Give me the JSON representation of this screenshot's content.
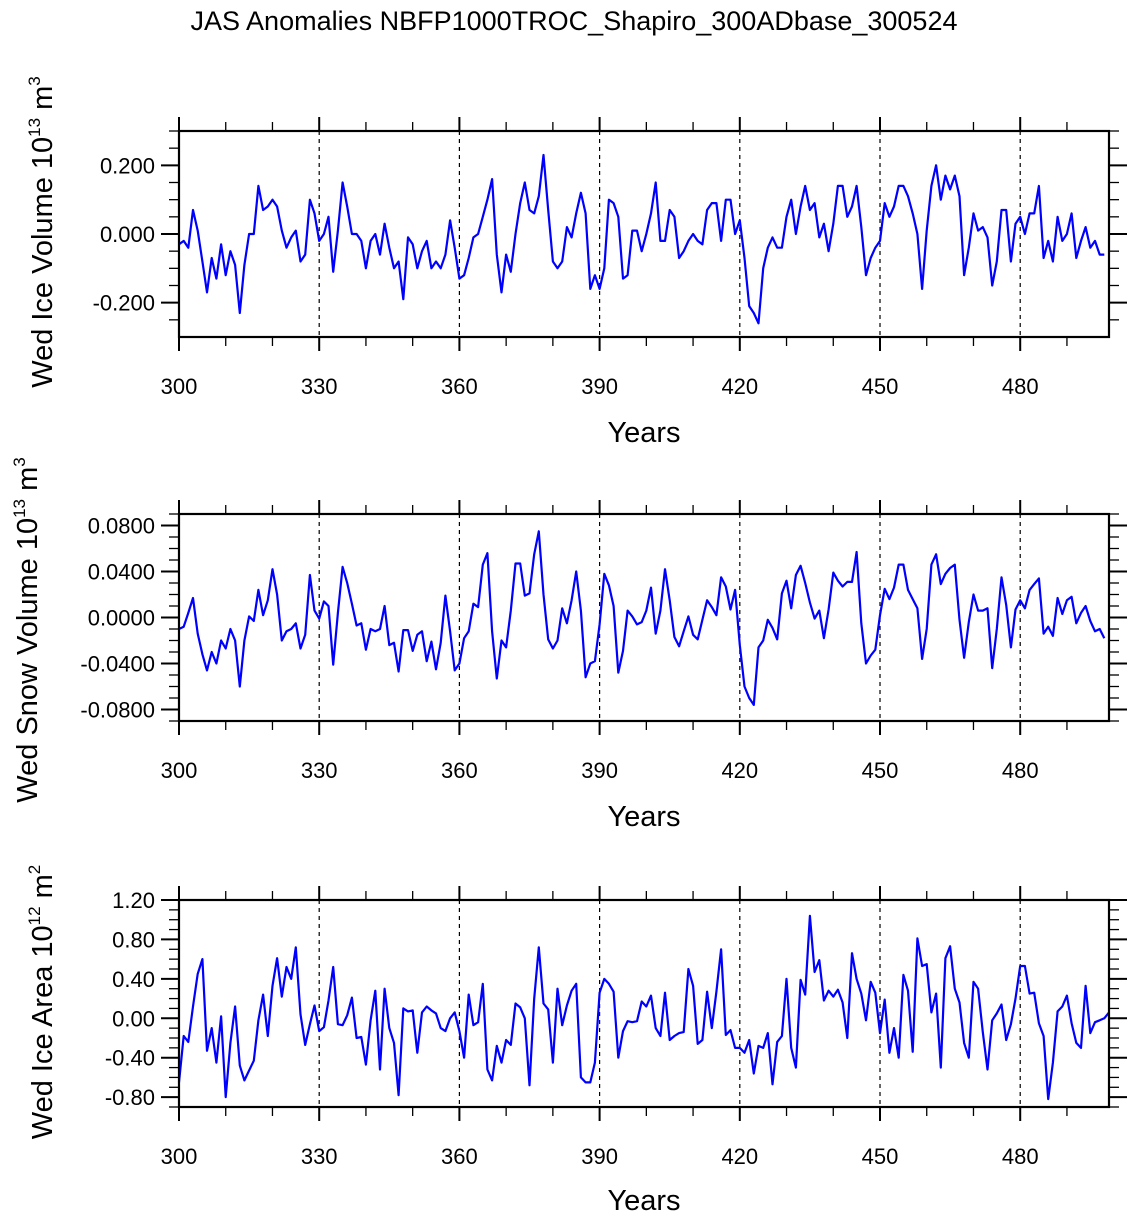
{
  "title": "JAS Anomalies NBFP1000TROC_Shapiro_300ADbase_300524",
  "colors": {
    "line": "#0000ff",
    "axis": "#000000",
    "grid": "#000000"
  },
  "chart_data": [
    {
      "type": "line",
      "name": "ice-volume",
      "title": "",
      "xlabel": "Years",
      "ylabel": {
        "prefix": "Wed Ice Volume 10",
        "exponent": "13",
        "unit": " m",
        "unit_exponent": "3"
      },
      "xlim": [
        300,
        499
      ],
      "ylim": [
        -0.3,
        0.3
      ],
      "xticks": [
        300,
        330,
        360,
        390,
        420,
        450,
        480
      ],
      "xtick_labels": [
        "300",
        "330",
        "360",
        "390",
        "420",
        "450",
        "480"
      ],
      "yticks": [
        0.2,
        0.0,
        -0.2
      ],
      "ytick_labels": [
        "0.200",
        "0.000",
        "-0.200"
      ],
      "vlines": [
        330,
        360,
        390,
        420,
        450,
        480
      ],
      "x_start": 300,
      "values": [
        -0.03,
        -0.02,
        -0.04,
        0.07,
        0.01,
        -0.08,
        -0.17,
        -0.07,
        -0.13,
        -0.03,
        -0.12,
        -0.05,
        -0.09,
        -0.23,
        -0.09,
        0.0,
        0.0,
        0.14,
        0.07,
        0.08,
        0.1,
        0.08,
        0.01,
        -0.04,
        -0.01,
        0.01,
        -0.08,
        -0.06,
        0.1,
        0.06,
        -0.02,
        0.0,
        0.05,
        -0.11,
        0.01,
        0.15,
        0.08,
        0.0,
        0.0,
        -0.02,
        -0.1,
        -0.02,
        0.0,
        -0.06,
        0.03,
        -0.04,
        -0.1,
        -0.08,
        -0.19,
        -0.01,
        -0.03,
        -0.1,
        -0.05,
        -0.02,
        -0.1,
        -0.08,
        -0.1,
        -0.06,
        0.04,
        -0.04,
        -0.13,
        -0.12,
        -0.07,
        -0.01,
        0.0,
        0.05,
        0.1,
        0.16,
        -0.06,
        -0.17,
        -0.06,
        -0.11,
        0.0,
        0.09,
        0.15,
        0.07,
        0.06,
        0.11,
        0.23,
        0.07,
        -0.08,
        -0.1,
        -0.08,
        0.02,
        -0.01,
        0.06,
        0.12,
        0.06,
        -0.16,
        -0.12,
        -0.16,
        -0.1,
        0.1,
        0.09,
        0.05,
        -0.13,
        -0.12,
        0.01,
        0.01,
        -0.05,
        0.0,
        0.06,
        0.15,
        -0.02,
        -0.02,
        0.07,
        0.05,
        -0.07,
        -0.05,
        -0.02,
        0.0,
        -0.02,
        -0.03,
        0.07,
        0.09,
        0.09,
        -0.02,
        0.1,
        0.1,
        0.0,
        0.04,
        -0.07,
        -0.21,
        -0.23,
        -0.26,
        -0.1,
        -0.04,
        -0.01,
        -0.04,
        -0.04,
        0.05,
        0.1,
        0.0,
        0.08,
        0.14,
        0.07,
        0.09,
        -0.01,
        0.03,
        -0.05,
        0.03,
        0.14,
        0.14,
        0.05,
        0.08,
        0.14,
        0.02,
        -0.12,
        -0.07,
        -0.04,
        -0.02,
        0.09,
        0.05,
        0.08,
        0.14,
        0.14,
        0.11,
        0.06,
        0.0,
        -0.16,
        0.01,
        0.14,
        0.2,
        0.1,
        0.17,
        0.13,
        0.17,
        0.11,
        -0.12,
        -0.04,
        0.06,
        0.01,
        0.02,
        -0.01,
        -0.15,
        -0.08,
        0.07,
        0.07,
        -0.08,
        0.03,
        0.05,
        0.0,
        0.06,
        0.06,
        0.14,
        -0.07,
        -0.02,
        -0.08,
        0.05,
        -0.02,
        0.0,
        0.06,
        -0.07,
        -0.02,
        0.02,
        -0.04,
        -0.02,
        -0.06,
        -0.06
      ]
    },
    {
      "type": "line",
      "name": "snow-volume",
      "title": "",
      "xlabel": "Years",
      "ylabel": {
        "prefix": "Wed Snow Volume 10",
        "exponent": "13",
        "unit": " m",
        "unit_exponent": "3"
      },
      "xlim": [
        300,
        499
      ],
      "ylim": [
        -0.09,
        0.09
      ],
      "xticks": [
        300,
        330,
        360,
        390,
        420,
        450,
        480
      ],
      "xtick_labels": [
        "300",
        "330",
        "360",
        "390",
        "420",
        "450",
        "480"
      ],
      "yticks": [
        0.08,
        0.04,
        0.0,
        -0.04,
        -0.08
      ],
      "ytick_labels": [
        "0.0800",
        "0.0400",
        "0.0000",
        "-0.0400",
        "-0.0800"
      ],
      "vlines": [
        330,
        360,
        390,
        420,
        450,
        480
      ],
      "x_start": 300,
      "values": [
        -0.01,
        -0.008,
        0.004,
        0.017,
        -0.014,
        -0.032,
        -0.046,
        -0.03,
        -0.04,
        -0.02,
        -0.027,
        -0.01,
        -0.02,
        -0.06,
        -0.02,
        0.001,
        -0.003,
        0.024,
        0.002,
        0.015,
        0.042,
        0.02,
        -0.02,
        -0.012,
        -0.01,
        -0.005,
        -0.027,
        -0.015,
        0.037,
        0.006,
        -0.001,
        0.014,
        0.01,
        -0.041,
        0.004,
        0.044,
        0.03,
        0.012,
        -0.007,
        -0.005,
        -0.028,
        -0.01,
        -0.012,
        -0.01,
        0.01,
        -0.024,
        -0.022,
        -0.047,
        -0.011,
        -0.011,
        -0.029,
        -0.015,
        -0.012,
        -0.038,
        -0.021,
        -0.045,
        -0.022,
        0.019,
        -0.012,
        -0.046,
        -0.04,
        -0.018,
        -0.012,
        0.012,
        0.009,
        0.046,
        0.056,
        -0.012,
        -0.053,
        -0.02,
        -0.026,
        0.006,
        0.047,
        0.047,
        0.019,
        0.021,
        0.055,
        0.075,
        0.02,
        -0.019,
        -0.027,
        -0.02,
        0.008,
        -0.005,
        0.015,
        0.04,
        0.006,
        -0.052,
        -0.04,
        -0.038,
        -0.006,
        0.038,
        0.028,
        0.01,
        -0.048,
        -0.029,
        0.006,
        0.001,
        -0.006,
        -0.004,
        0.006,
        0.026,
        -0.014,
        0.006,
        0.042,
        0.015,
        -0.017,
        -0.025,
        -0.012,
        0.001,
        -0.015,
        -0.019,
        -0.002,
        0.015,
        0.009,
        0.002,
        0.035,
        0.027,
        0.007,
        0.024,
        -0.024,
        -0.06,
        -0.07,
        -0.076,
        -0.026,
        -0.02,
        -0.002,
        -0.009,
        -0.019,
        0.021,
        0.032,
        0.008,
        0.037,
        0.045,
        0.03,
        0.013,
        -0.001,
        0.006,
        -0.018,
        0.007,
        0.039,
        0.032,
        0.027,
        0.031,
        0.031,
        0.057,
        -0.005,
        -0.04,
        -0.033,
        -0.028,
        0.002,
        0.025,
        0.016,
        0.026,
        0.046,
        0.046,
        0.024,
        0.016,
        0.008,
        -0.036,
        -0.01,
        0.046,
        0.055,
        0.029,
        0.038,
        0.043,
        0.046,
        -0.002,
        -0.035,
        -0.004,
        0.02,
        0.006,
        0.006,
        0.008,
        -0.044,
        -0.01,
        0.035,
        0.011,
        -0.026,
        0.007,
        0.015,
        0.008,
        0.024,
        0.029,
        0.034,
        -0.014,
        -0.008,
        -0.016,
        0.017,
        0.003,
        0.015,
        0.018,
        -0.005,
        0.004,
        0.01,
        -0.003,
        -0.012,
        -0.01,
        -0.018
      ]
    },
    {
      "type": "line",
      "name": "ice-area",
      "title": "",
      "xlabel": "Years",
      "ylabel": {
        "prefix": "Wed Ice Area 10",
        "exponent": "12",
        "unit": " m",
        "unit_exponent": "2"
      },
      "xlim": [
        300,
        499
      ],
      "ylim": [
        -0.9,
        1.2
      ],
      "xticks": [
        300,
        330,
        360,
        390,
        420,
        450,
        480
      ],
      "xtick_labels": [
        "300",
        "330",
        "360",
        "390",
        "420",
        "450",
        "480"
      ],
      "yticks": [
        1.2,
        0.8,
        0.4,
        0.0,
        -0.4,
        -0.8
      ],
      "ytick_labels": [
        "1.20",
        "0.80",
        "0.40",
        "0.00",
        "-0.40",
        "-0.80"
      ],
      "vlines": [
        330,
        360,
        390,
        420,
        450,
        480
      ],
      "x_start": 300,
      "values": [
        -0.65,
        -0.18,
        -0.24,
        0.12,
        0.45,
        0.6,
        -0.33,
        -0.1,
        -0.45,
        0.02,
        -0.8,
        -0.25,
        0.12,
        -0.48,
        -0.63,
        -0.53,
        -0.43,
        -0.02,
        0.24,
        -0.18,
        0.33,
        0.61,
        0.22,
        0.52,
        0.4,
        0.72,
        0.04,
        -0.27,
        -0.06,
        0.13,
        -0.13,
        -0.09,
        0.18,
        0.52,
        -0.06,
        -0.07,
        0.03,
        0.21,
        -0.2,
        -0.19,
        -0.47,
        -0.02,
        0.28,
        -0.52,
        0.3,
        -0.1,
        -0.25,
        -0.78,
        0.1,
        0.07,
        0.08,
        -0.35,
        0.06,
        0.12,
        0.08,
        0.05,
        -0.1,
        -0.13,
        0.0,
        0.06,
        -0.13,
        -0.4,
        0.24,
        -0.07,
        -0.04,
        0.35,
        -0.52,
        -0.63,
        -0.28,
        -0.45,
        -0.22,
        -0.27,
        0.15,
        0.11,
        0.0,
        -0.68,
        0.2,
        0.72,
        0.15,
        0.09,
        -0.45,
        0.3,
        -0.07,
        0.13,
        0.28,
        0.35,
        -0.6,
        -0.65,
        -0.65,
        -0.45,
        0.26,
        0.4,
        0.35,
        0.27,
        -0.4,
        -0.13,
        -0.03,
        -0.04,
        -0.03,
        0.17,
        0.12,
        0.23,
        -0.1,
        -0.18,
        0.26,
        -0.22,
        -0.18,
        -0.15,
        -0.14,
        0.5,
        0.33,
        -0.26,
        -0.22,
        0.27,
        -0.1,
        0.27,
        0.7,
        -0.17,
        -0.12,
        -0.3,
        -0.3,
        -0.35,
        -0.22,
        -0.56,
        -0.28,
        -0.3,
        -0.15,
        -0.67,
        -0.24,
        -0.18,
        0.4,
        -0.3,
        -0.5,
        0.39,
        0.24,
        1.04,
        0.47,
        0.59,
        0.18,
        0.28,
        0.22,
        0.29,
        0.16,
        -0.2,
        0.66,
        0.4,
        0.25,
        -0.02,
        0.37,
        0.26,
        -0.15,
        0.19,
        -0.35,
        -0.1,
        -0.4,
        0.44,
        0.28,
        -0.34,
        0.81,
        0.53,
        0.55,
        0.06,
        0.25,
        -0.5,
        0.61,
        0.73,
        0.3,
        0.16,
        -0.25,
        -0.4,
        0.37,
        0.3,
        -0.14,
        -0.52,
        -0.02,
        0.05,
        0.14,
        -0.22,
        -0.06,
        0.2,
        0.53,
        0.53,
        0.25,
        0.26,
        -0.05,
        -0.18,
        -0.82,
        -0.45,
        0.07,
        0.12,
        0.23,
        -0.05,
        -0.25,
        -0.3,
        0.33,
        -0.15,
        -0.04,
        -0.02,
        0.0,
        0.06
      ]
    }
  ]
}
